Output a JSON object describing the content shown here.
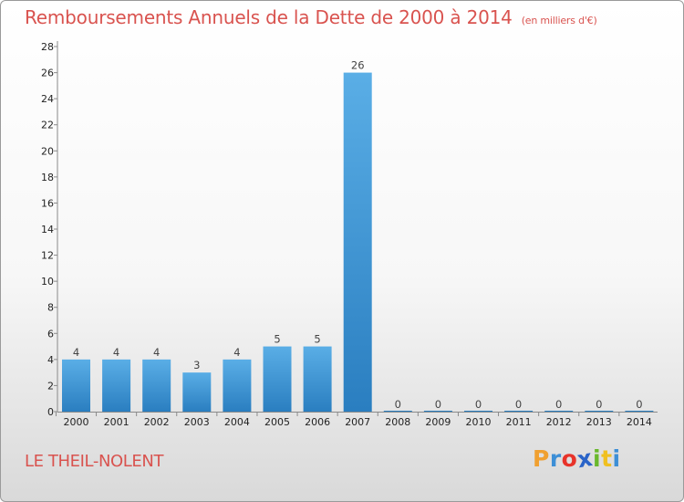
{
  "header": {
    "title": "Remboursements Annuels de la Dette de 2000 à 2014",
    "unit": "(en milliers d'€)"
  },
  "footer": {
    "commune": "LE THEIL-NOLENT",
    "logo": "Proxiti",
    "logo_colors": [
      "#f0a030",
      "#3d8fd6",
      "#e8332a",
      "#2a64c8",
      "#6ab82c",
      "#f0c020",
      "#3d8fd6"
    ]
  },
  "chart_data": {
    "type": "bar",
    "title": "Remboursements Annuels de la Dette de 2000 à 2014",
    "unit": "(en milliers d'€)",
    "categories": [
      "2000",
      "2001",
      "2002",
      "2003",
      "2004",
      "2005",
      "2006",
      "2007",
      "2008",
      "2009",
      "2010",
      "2011",
      "2012",
      "2013",
      "2014"
    ],
    "values": [
      4,
      4,
      4,
      3,
      4,
      5,
      5,
      26,
      0,
      0,
      0,
      0,
      0,
      0,
      0
    ],
    "data_labels": [
      "4",
      "4",
      "4",
      "3",
      "4",
      "5",
      "5",
      "26",
      "0",
      "0",
      "0",
      "0",
      "0",
      "0",
      "0"
    ],
    "ylim": [
      0,
      28
    ],
    "yticks": [
      "0",
      "2",
      "4",
      "6",
      "8",
      "10",
      "12",
      "14",
      "16",
      "18",
      "20",
      "22",
      "24",
      "26",
      "28"
    ],
    "grid": false,
    "bar_color_top": "#5aaee6",
    "bar_color_bottom": "#2a7ec0"
  }
}
